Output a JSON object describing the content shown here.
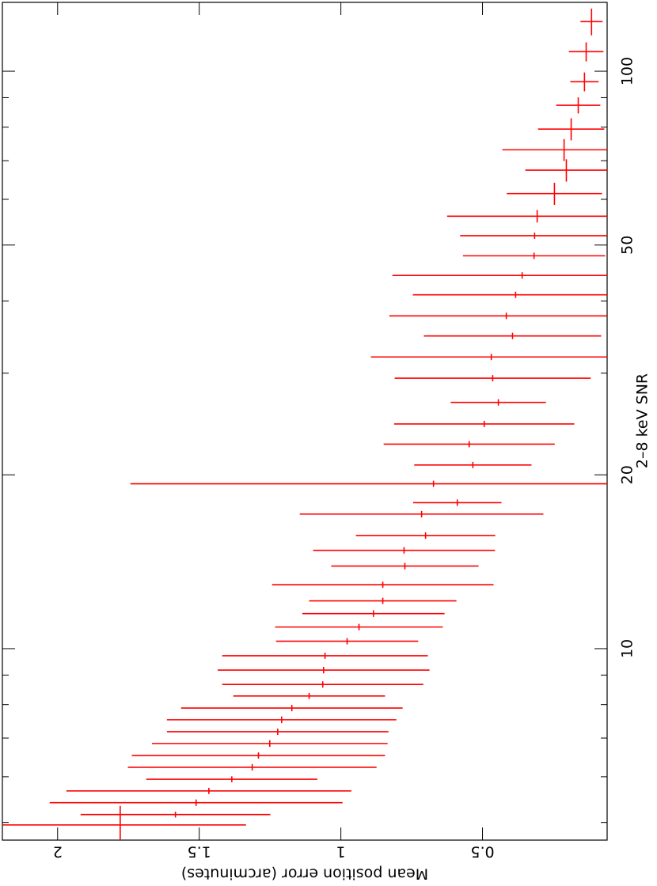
{
  "chart_data": {
    "type": "scatter",
    "x_label": "2–8 keV SNR",
    "y_label": "Mean position error (arcminutes)",
    "x_log": true,
    "xlim": [
      4.66,
      131.6
    ],
    "xticks": [
      10,
      20,
      50,
      100
    ],
    "xminorticks": [
      5,
      6,
      7,
      8,
      9,
      30,
      40,
      60,
      70,
      80,
      90
    ],
    "ylim": [
      0.06,
      2.195
    ],
    "yticks": [
      0.5,
      1,
      1.5,
      2
    ],
    "series": [
      {
        "color": "#ff0000",
        "x": [
          121.9,
          108.1,
          95.9,
          87.3,
          79.4,
          73.1,
          67.4,
          61.4,
          56.1,
          51.9,
          47.9,
          44.3,
          41.0,
          37.7,
          34.8,
          32.0,
          29.4,
          26.7,
          24.5,
          22.6,
          20.8,
          19.3,
          17.9,
          17.1,
          15.7,
          14.8,
          13.9,
          12.9,
          12.1,
          11.5,
          10.9,
          10.3,
          9.72,
          9.18,
          8.67,
          8.28,
          7.89,
          7.53,
          7.18,
          6.85,
          6.53,
          6.23,
          5.94,
          5.67,
          5.41,
          5.16,
          4.95
        ],
        "xerr": [
          6.5,
          4.1,
          3.6,
          2.8,
          3.5,
          3.2,
          3.0,
          2.7,
          1.4,
          0.65,
          0.6,
          0.56,
          0.52,
          0.48,
          0.44,
          0.4,
          0.37,
          0.34,
          0.31,
          0.28,
          0.26,
          0.24,
          0.23,
          0.22,
          0.2,
          0.19,
          0.18,
          0.16,
          0.15,
          0.15,
          0.14,
          0.13,
          0.12,
          0.12,
          0.11,
          0.1,
          0.1,
          0.1,
          0.09,
          0.09,
          0.08,
          0.08,
          0.07,
          0.07,
          0.07,
          0.06,
          0.39
        ],
        "values": [
          0.115,
          0.134,
          0.14,
          0.162,
          0.187,
          0.212,
          0.204,
          0.246,
          0.307,
          0.316,
          0.318,
          0.36,
          0.383,
          0.416,
          0.394,
          0.469,
          0.464,
          0.444,
          0.494,
          0.547,
          0.534,
          0.673,
          0.589,
          0.715,
          0.701,
          0.777,
          0.774,
          0.852,
          0.852,
          0.885,
          0.936,
          0.978,
          1.056,
          1.061,
          1.064,
          1.112,
          1.173,
          1.209,
          1.223,
          1.251,
          1.291,
          1.313,
          1.385,
          1.466,
          1.511,
          1.584,
          1.779
        ],
        "yerr": [
          0.039,
          0.061,
          0.05,
          0.078,
          0.117,
          0.218,
          0.145,
          0.168,
          0.318,
          0.263,
          0.251,
          0.458,
          0.363,
          0.413,
          0.313,
          0.425,
          0.346,
          0.168,
          0.318,
          0.302,
          0.207,
          1.07,
          0.156,
          0.43,
          0.246,
          0.321,
          0.26,
          0.391,
          0.26,
          0.251,
          0.296,
          0.251,
          0.363,
          0.374,
          0.355,
          0.268,
          0.391,
          0.405,
          0.391,
          0.416,
          0.447,
          0.439,
          0.302,
          0.503,
          0.517,
          0.335,
          0.444
        ]
      }
    ]
  }
}
